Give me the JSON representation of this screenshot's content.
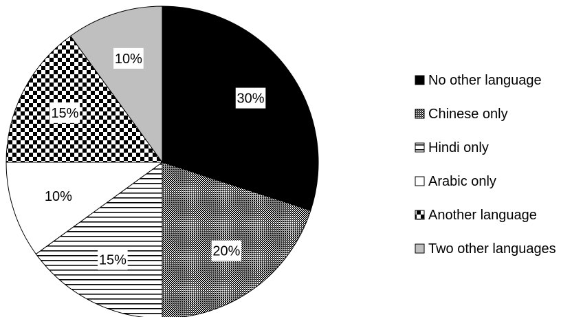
{
  "chart_data": {
    "type": "pie",
    "start_angle_deg": 0,
    "direction": "clockwise",
    "slices": [
      {
        "label": "No other language",
        "value": 30,
        "data_label": "30%",
        "fill": "solid-black"
      },
      {
        "label": "Chinese only",
        "value": 20,
        "data_label": "20%",
        "fill": "fine-dot-pattern"
      },
      {
        "label": "Hindi only",
        "value": 15,
        "data_label": "15%",
        "fill": "horizontal-lines"
      },
      {
        "label": "Arabic only",
        "value": 10,
        "data_label": "10%",
        "fill": "white"
      },
      {
        "label": "Another language",
        "value": 15,
        "data_label": "15%",
        "fill": "checkerboard"
      },
      {
        "label": "Two other languages",
        "value": 10,
        "data_label": "10%",
        "fill": "light-gray"
      }
    ],
    "legend_position": "right",
    "colors": {
      "black": "#000000",
      "gray": "#bfbfbf",
      "white": "#ffffff"
    }
  }
}
